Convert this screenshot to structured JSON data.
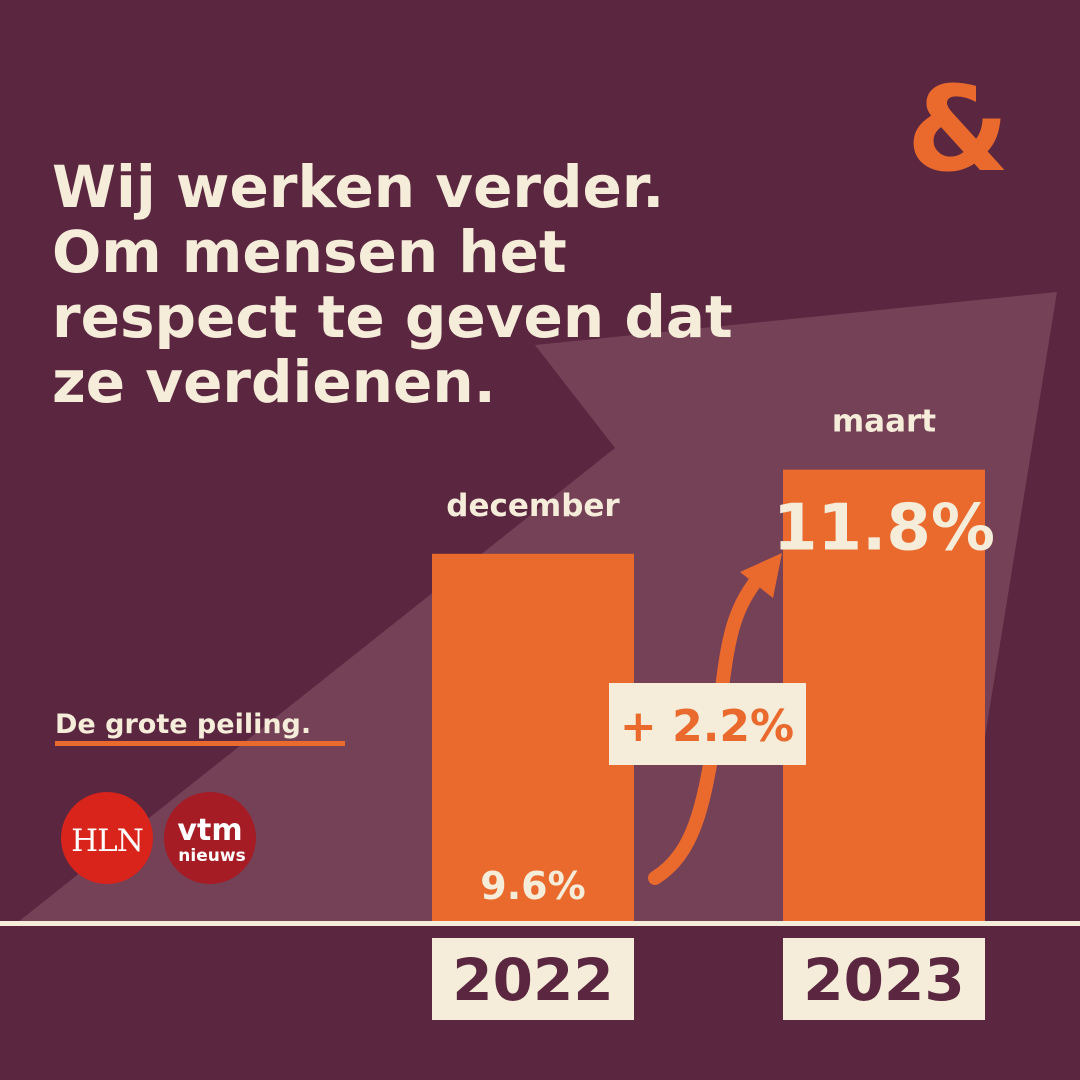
{
  "colors": {
    "background": "#5b2740",
    "wedge": "#744157",
    "accent": "#ea6a2e",
    "cream": "#f5ecd9",
    "text_dark": "#5b2740",
    "hln_red": "#d9241b",
    "vtm_red": "#a61c24"
  },
  "headline": {
    "lines": [
      "Wij werken verder.",
      "Om mensen het",
      "respect te geven dat",
      "ze verdienen."
    ]
  },
  "logo": {
    "text": "&",
    "icon": "ampersand-logo"
  },
  "subtitle": {
    "text": "De grote peiling."
  },
  "brands": {
    "hln": {
      "text": "HLN",
      "icon": "hln-logo"
    },
    "vtm": {
      "line1": "vtm",
      "line2": "nieuws",
      "icon": "vtm-nieuws-logo"
    }
  },
  "change": {
    "label": "+ 2.2%",
    "icon": "up-curved-arrow-icon"
  },
  "chart_data": {
    "type": "bar",
    "categories": [
      "2022",
      "2023"
    ],
    "month_labels": [
      "december",
      "maart"
    ],
    "values": [
      9.6,
      11.8
    ],
    "value_labels": [
      "9.6%",
      "11.8%"
    ],
    "title": "",
    "xlabel": "",
    "ylabel": "",
    "unit": "%"
  }
}
